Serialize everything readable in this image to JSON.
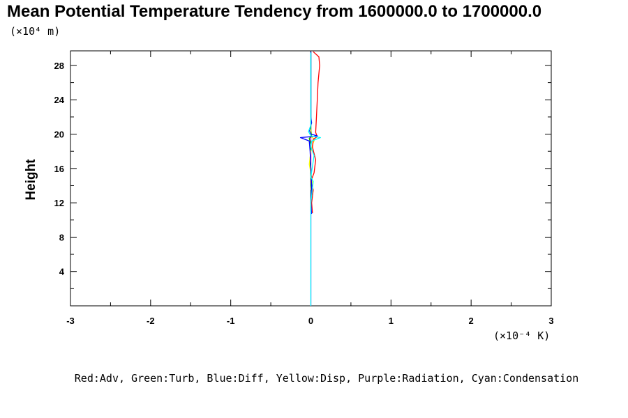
{
  "chart_data": {
    "type": "line",
    "title": "Mean Potential Temperature Tendency from 1600000.0 to 1700000.0",
    "ylabel": "Height",
    "y_unit": "(×10⁴ m)",
    "x_unit": "(×10⁻⁴ K)",
    "xlim": [
      -3,
      3
    ],
    "ylim": [
      0,
      29.7
    ],
    "x_ticks": [
      "-3",
      "-2",
      "-1",
      "0",
      "1",
      "2",
      "3"
    ],
    "y_ticks": [
      "4",
      "8",
      "12",
      "16",
      "20",
      "24",
      "28"
    ],
    "grid": false,
    "legend_text": "Red:Adv, Green:Turb, Blue:Diff, Yellow:Disp, Purple:Radiation, Cyan:Condensation",
    "series": [
      {
        "name": "Adv",
        "color": "#ff0000",
        "points": [
          [
            0.02,
            10.8
          ],
          [
            0.01,
            12.0
          ],
          [
            0.03,
            13.5
          ],
          [
            0.0,
            14.5
          ],
          [
            0.04,
            15.5
          ],
          [
            0.06,
            17.0
          ],
          [
            0.02,
            18.5
          ],
          [
            0.03,
            19.4
          ],
          [
            0.08,
            19.7
          ],
          [
            0.06,
            20.2
          ],
          [
            0.07,
            22.0
          ],
          [
            0.08,
            24.0
          ],
          [
            0.09,
            26.0
          ],
          [
            0.11,
            28.0
          ],
          [
            0.1,
            29.0
          ],
          [
            0.03,
            29.6
          ]
        ]
      },
      {
        "name": "Turb",
        "color": "#00aa00",
        "points": [
          [
            0.0,
            11.0
          ],
          [
            0.0,
            13.0
          ],
          [
            0.0,
            15.0
          ],
          [
            -0.01,
            17.0
          ],
          [
            0.0,
            18.8
          ],
          [
            -0.02,
            19.5
          ],
          [
            0.01,
            19.8
          ],
          [
            0.0,
            20.5
          ],
          [
            0.0,
            23.0
          ],
          [
            0.0,
            26.0
          ],
          [
            0.0,
            29.6
          ]
        ]
      },
      {
        "name": "Diff",
        "color": "#0000ff",
        "points": [
          [
            0.01,
            10.7
          ],
          [
            0.0,
            12.0
          ],
          [
            0.01,
            14.0
          ],
          [
            0.0,
            16.0
          ],
          [
            -0.01,
            18.0
          ],
          [
            -0.02,
            19.2
          ],
          [
            -0.13,
            19.6
          ],
          [
            0.0,
            19.7
          ],
          [
            0.08,
            19.8
          ],
          [
            0.0,
            20.0
          ],
          [
            -0.02,
            20.5
          ],
          [
            0.01,
            21.3
          ],
          [
            0.0,
            22.0
          ],
          [
            0.0,
            24.0
          ],
          [
            0.0,
            26.0
          ],
          [
            0.0,
            29.6
          ]
        ]
      },
      {
        "name": "Disp",
        "color": "#ffff00",
        "points": [
          [
            0.0,
            13.5
          ],
          [
            0.02,
            14.5
          ],
          [
            -0.02,
            16.5
          ],
          [
            0.0,
            18.0
          ],
          [
            0.03,
            19.0
          ],
          [
            0.05,
            19.4
          ],
          [
            0.0,
            19.7
          ],
          [
            0.0,
            20.5
          ]
        ]
      },
      {
        "name": "Radiation",
        "color": "#cc00cc",
        "points": [
          [
            0.0,
            0.0
          ],
          [
            0.0,
            29.6
          ]
        ]
      },
      {
        "name": "Condensation",
        "color": "#00ffff",
        "points": [
          [
            0.0,
            0.0
          ],
          [
            0.0,
            10.0
          ],
          [
            0.0,
            12.0
          ],
          [
            0.03,
            14.5
          ],
          [
            0.0,
            15.0
          ],
          [
            0.04,
            17.5
          ],
          [
            0.0,
            18.5
          ],
          [
            0.01,
            19.2
          ],
          [
            0.12,
            19.6
          ],
          [
            0.0,
            19.8
          ],
          [
            -0.03,
            20.3
          ],
          [
            0.0,
            21.0
          ],
          [
            0.0,
            24.0
          ],
          [
            0.0,
            27.0
          ],
          [
            0.0,
            29.5
          ]
        ]
      }
    ]
  }
}
